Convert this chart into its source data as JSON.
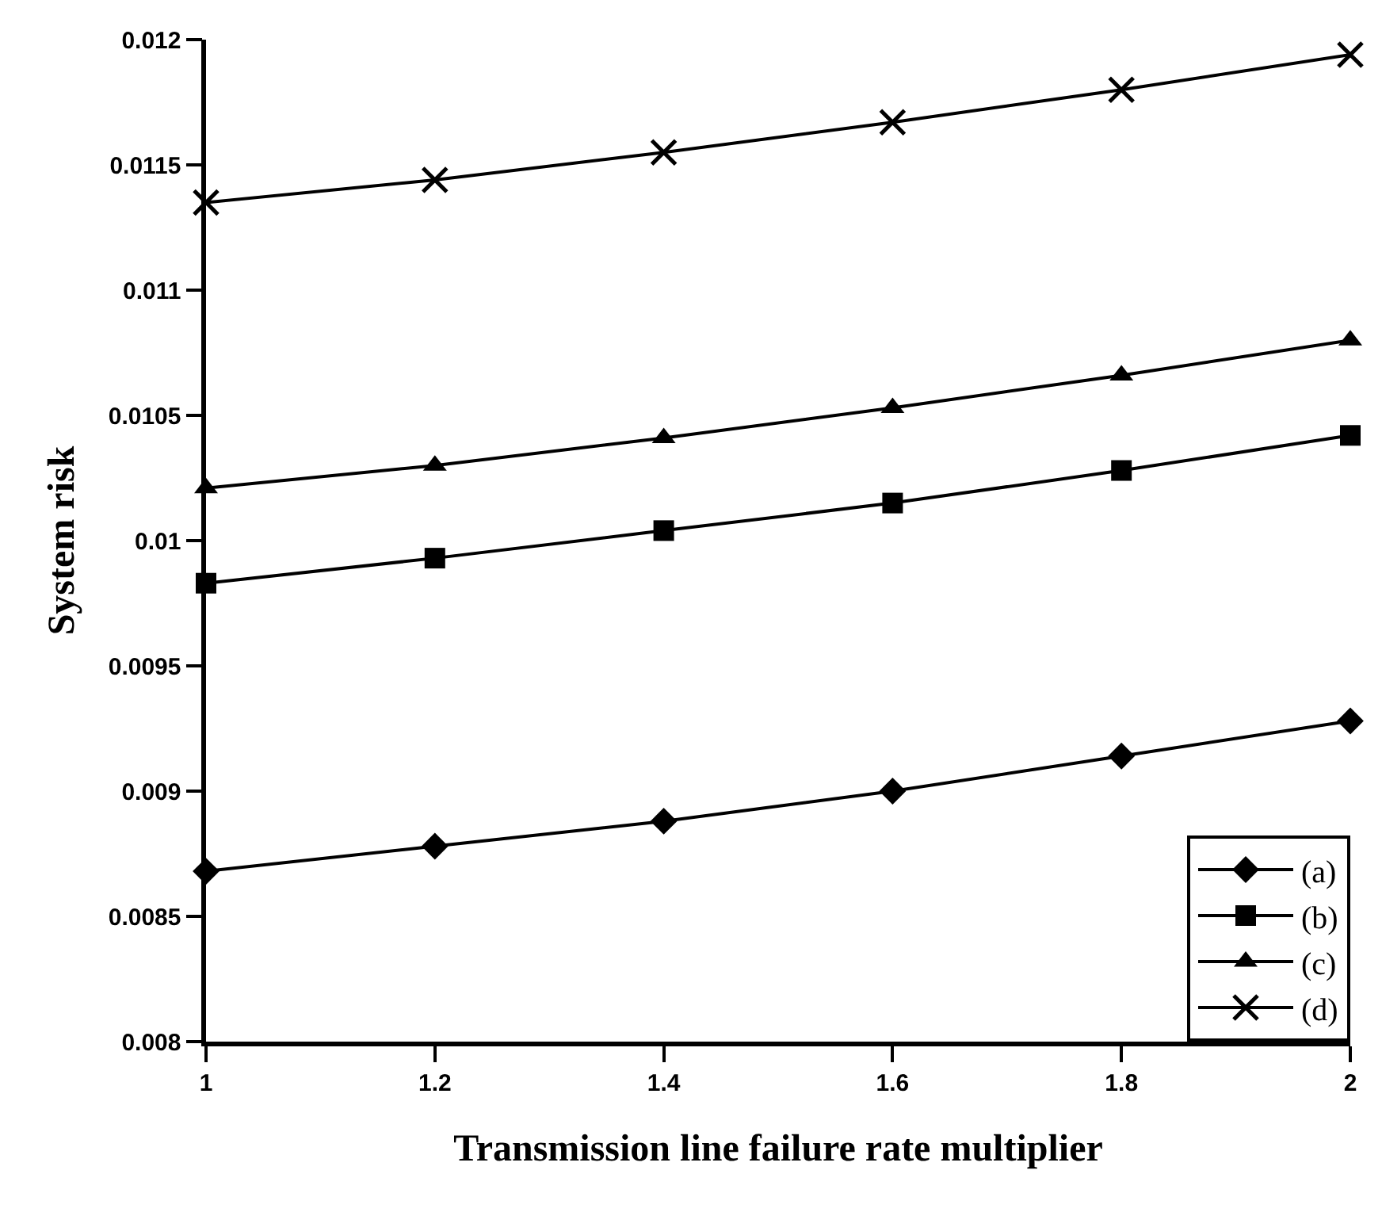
{
  "chart_data": {
    "type": "line",
    "xlabel": "Transmission line failure rate multiplier",
    "ylabel": "System risk",
    "x": [
      1,
      1.2,
      1.4,
      1.6,
      1.8,
      2
    ],
    "series": [
      {
        "name": "(a)",
        "color": "#000000",
        "marker": "diamond",
        "values": [
          0.00868,
          0.00878,
          0.00888,
          0.009,
          0.00914,
          0.00928
        ]
      },
      {
        "name": "(b)",
        "color": "#000000",
        "marker": "square",
        "values": [
          0.00983,
          0.00993,
          0.01004,
          0.01015,
          0.01028,
          0.01042
        ]
      },
      {
        "name": "(c)",
        "color": "#000000",
        "marker": "triangle",
        "values": [
          0.01021,
          0.0103,
          0.01041,
          0.01053,
          0.01066,
          0.0108
        ]
      },
      {
        "name": "(d)",
        "color": "#000000",
        "marker": "cross",
        "values": [
          0.01135,
          0.01144,
          0.01155,
          0.01167,
          0.0118,
          0.01194
        ]
      }
    ],
    "xlim": [
      1,
      2
    ],
    "xticks": [
      1,
      1.2,
      1.4,
      1.6,
      1.8,
      2
    ],
    "ylim": [
      0.008,
      0.012
    ],
    "yticks": [
      0.008,
      0.0085,
      0.009,
      0.0095,
      0.01,
      0.0105,
      0.011,
      0.0115,
      0.012
    ],
    "grid": false,
    "legend": "bottom right",
    "line_style": "solid"
  }
}
